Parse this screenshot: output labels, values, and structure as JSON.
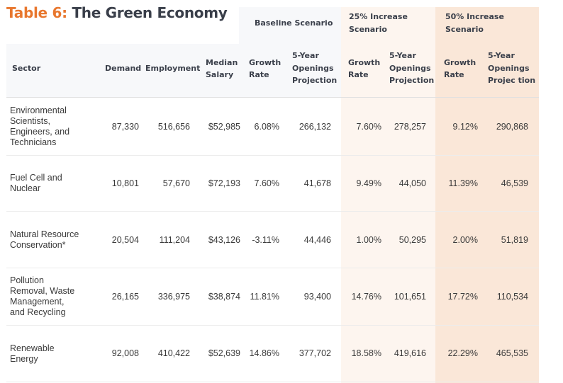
{
  "title": {
    "prefix": "Table 6:",
    "text": "The Green Economy"
  },
  "groups": {
    "baseline": "Baseline Scenario",
    "inc25_l1": "25% Increase",
    "inc25_l2": "Scenario",
    "inc50_l1": "50% Increase",
    "inc50_l2": "Scenario"
  },
  "headers": {
    "sector": "Sector",
    "demand": "Demand",
    "employment": "Employment",
    "median_l1": "Median",
    "median_l2": "Salary",
    "growth_l1": "Growth",
    "growth_l2": "Rate",
    "open_l1": "5-Year",
    "open_l2": "Openings",
    "open_l3": "Projection",
    "open50_l3": "Projec tion"
  },
  "rows": [
    {
      "sector": [
        "Environmental",
        "Scientists,",
        "Engineers, and",
        "Technicians"
      ],
      "demand": "87,330",
      "employment": "516,656",
      "salary": "$52,985",
      "base_growth": "6.08%",
      "base_open": "266,132",
      "g25": "7.60%",
      "o25": "278,257",
      "g50": "9.12%",
      "o50": "290,868"
    },
    {
      "sector": [
        "Fuel Cell and",
        "Nuclear"
      ],
      "demand": "10,801",
      "employment": "57,670",
      "salary": "$72,193",
      "base_growth": "7.60%",
      "base_open": "41,678",
      "g25": "9.49%",
      "o25": "44,050",
      "g50": "11.39%",
      "o50": "46,539"
    },
    {
      "sector": [
        "Natural Resource",
        "Conservation*"
      ],
      "demand": "20,504",
      "employment": "111,204",
      "salary": "$43,126",
      "base_growth": "-3.11%",
      "base_open": "44,446",
      "g25": "1.00%",
      "o25": "50,295",
      "g50": "2.00%",
      "o50": "51,819"
    },
    {
      "sector": [
        "Pollution",
        "Removal, Waste",
        "Management,",
        "and Recycling"
      ],
      "demand": "26,165",
      "employment": "336,975",
      "salary": "$38,874",
      "base_growth": "11.81%",
      "base_open": "93,400",
      "g25": "14.76%",
      "o25": "101,651",
      "g50": "17.72%",
      "o50": "110,534"
    },
    {
      "sector": [
        "Renewable",
        "Energy"
      ],
      "demand": "92,008",
      "employment": "410,422",
      "salary": "$52,639",
      "base_growth": "14.86%",
      "base_open": "377,702",
      "g25": "18.58%",
      "o25": "419,616",
      "g50": "22.29%",
      "o50": "465,535"
    }
  ]
}
